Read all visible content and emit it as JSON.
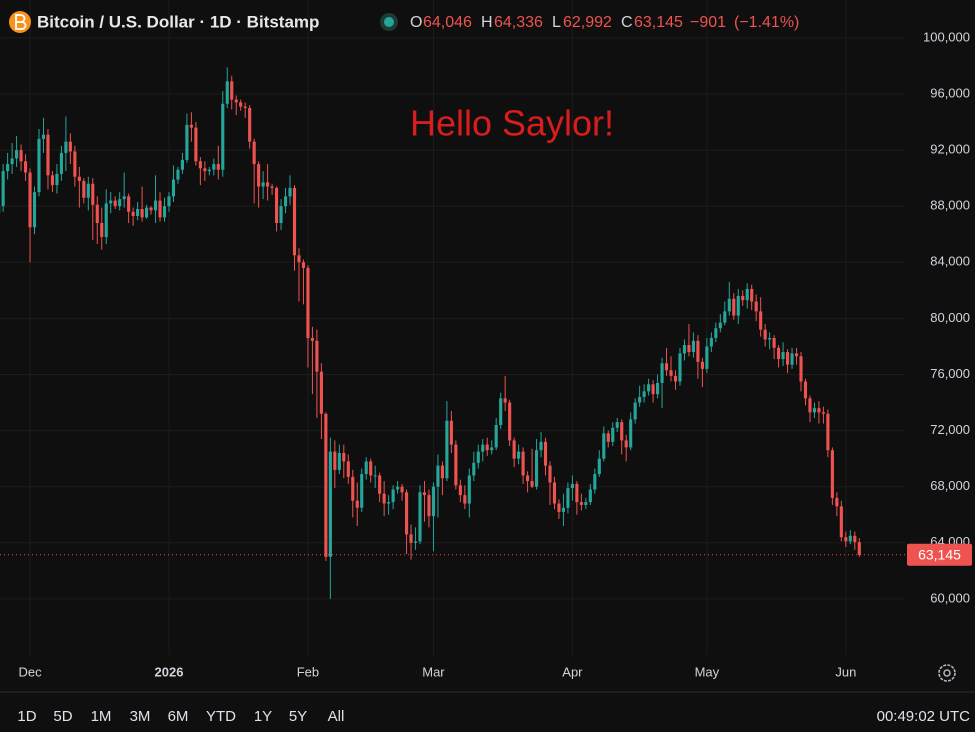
{
  "header": {
    "title": "Bitcoin / U.S. Dollar · 1D · Bitstamp",
    "ohlc_keys": [
      "O",
      "H",
      "L",
      "C"
    ],
    "last_values": [
      {
        "value": 64046,
        "label": "64,046"
      },
      {
        "value": 64336,
        "label": "64,336"
      },
      {
        "value": 62992,
        "label": "62,992"
      },
      {
        "value": 63145,
        "label": "63,145"
      }
    ],
    "change": {
      "value": -901,
      "label": "−901"
    },
    "change_pct": {
      "value": -1.41,
      "label": "(−1.41%)"
    }
  },
  "chart_data": {
    "type": "candlestick",
    "annotation": "Hello Saylor!",
    "up_color": "#26a69a",
    "down_color": "#ef5350",
    "grid": true,
    "ylim": [
      56000,
      102700
    ],
    "yticks": [
      {
        "value": 60000,
        "label": "60,000"
      },
      {
        "value": 64000,
        "label": "64,000"
      },
      {
        "value": 68000,
        "label": "68,000"
      },
      {
        "value": 72000,
        "label": "72,000"
      },
      {
        "value": 76000,
        "label": "76,000"
      },
      {
        "value": 80000,
        "label": "80,000"
      },
      {
        "value": 84000,
        "label": "84,000"
      },
      {
        "value": 88000,
        "label": "88,000"
      },
      {
        "value": 92000,
        "label": "92,000"
      },
      {
        "value": 96000,
        "label": "96,000"
      },
      {
        "value": 100000,
        "label": "100,000"
      }
    ],
    "xlim": [
      0.3,
      202.2
    ],
    "xticks": [
      {
        "value": 7,
        "label": "Dec"
      },
      {
        "value": 38,
        "label": "2026"
      },
      {
        "value": 69,
        "label": "Feb"
      },
      {
        "value": 97,
        "label": "Mar"
      },
      {
        "value": 128,
        "label": "Apr"
      },
      {
        "value": 158,
        "label": "May"
      },
      {
        "value": 189,
        "label": "Jun"
      }
    ],
    "ohlc": [
      [
        87500,
        89200,
        86900,
        88000
      ],
      [
        88000,
        91000,
        87600,
        90500
      ],
      [
        90500,
        91800,
        89900,
        91000
      ],
      [
        91000,
        92500,
        90300,
        91400
      ],
      [
        91400,
        93000,
        90800,
        92000
      ],
      [
        92000,
        92400,
        90500,
        91200
      ],
      [
        91200,
        91700,
        89800,
        90400
      ],
      [
        90400,
        90700,
        84000,
        86500
      ],
      [
        86500,
        89400,
        86000,
        89000
      ],
      [
        89000,
        93500,
        88700,
        92800
      ],
      [
        92800,
        94300,
        91800,
        93100
      ],
      [
        93100,
        93500,
        89200,
        90200
      ],
      [
        90200,
        90500,
        89000,
        89500
      ],
      [
        89500,
        91000,
        88900,
        90300
      ],
      [
        90300,
        92300,
        89800,
        91800
      ],
      [
        91800,
        94400,
        90500,
        92600
      ],
      [
        92600,
        93200,
        91000,
        91900
      ],
      [
        91900,
        92300,
        89400,
        90100
      ],
      [
        90100,
        90800,
        87900,
        89800
      ],
      [
        89800,
        90000,
        88200,
        88600
      ],
      [
        88600,
        90100,
        87700,
        89600
      ],
      [
        89600,
        90000,
        85600,
        88100
      ],
      [
        88100,
        88700,
        85300,
        86800
      ],
      [
        86800,
        87900,
        84900,
        85800
      ],
      [
        85800,
        89200,
        85300,
        88200
      ],
      [
        88200,
        89000,
        87500,
        88400
      ],
      [
        88400,
        88700,
        87800,
        88000
      ],
      [
        88000,
        89000,
        87700,
        88500
      ],
      [
        88500,
        90400,
        87900,
        88700
      ],
      [
        88700,
        88900,
        86800,
        87600
      ],
      [
        87600,
        87900,
        86600,
        87300
      ],
      [
        87300,
        88300,
        87000,
        87800
      ],
      [
        87800,
        89400,
        86900,
        87200
      ],
      [
        87200,
        88100,
        87100,
        87900
      ],
      [
        87900,
        88000,
        87400,
        87700
      ],
      [
        87700,
        90200,
        86800,
        88400
      ],
      [
        88400,
        89000,
        86900,
        87200
      ],
      [
        87200,
        88600,
        86900,
        88000
      ],
      [
        88000,
        89000,
        87600,
        88700
      ],
      [
        88700,
        90900,
        88300,
        89900
      ],
      [
        89900,
        90800,
        89600,
        90600
      ],
      [
        90600,
        91800,
        90300,
        91300
      ],
      [
        91300,
        94600,
        91100,
        93800
      ],
      [
        93800,
        94700,
        92600,
        93600
      ],
      [
        93600,
        94000,
        90900,
        91200
      ],
      [
        91200,
        91500,
        89500,
        90700
      ],
      [
        90700,
        91200,
        89800,
        90500
      ],
      [
        90500,
        90800,
        90200,
        90600
      ],
      [
        90600,
        91400,
        90200,
        91000
      ],
      [
        91000,
        92300,
        89900,
        90600
      ],
      [
        90600,
        96200,
        90100,
        95300
      ],
      [
        95300,
        97900,
        95000,
        96900
      ],
      [
        96900,
        97300,
        94900,
        95600
      ],
      [
        95600,
        95900,
        94500,
        95400
      ],
      [
        95400,
        95600,
        94800,
        95100
      ],
      [
        95100,
        95400,
        94300,
        95000
      ],
      [
        95000,
        95200,
        92100,
        92600
      ],
      [
        92600,
        92800,
        88200,
        91000
      ],
      [
        91000,
        91200,
        87900,
        89400
      ],
      [
        89400,
        90500,
        88500,
        89700
      ],
      [
        89700,
        91000,
        88400,
        89400
      ],
      [
        89400,
        89600,
        88800,
        89300
      ],
      [
        89300,
        89400,
        86200,
        86800
      ],
      [
        86800,
        88500,
        86300,
        88000
      ],
      [
        88000,
        89300,
        87500,
        88700
      ],
      [
        88700,
        90200,
        88100,
        89300
      ],
      [
        89300,
        89500,
        83400,
        84500
      ],
      [
        84500,
        85000,
        81200,
        84000
      ],
      [
        84000,
        84200,
        81000,
        83600
      ],
      [
        83600,
        83800,
        76500,
        78600
      ],
      [
        78600,
        79400,
        74600,
        78400
      ],
      [
        78400,
        79200,
        72900,
        76200
      ],
      [
        76200,
        76800,
        71400,
        73200
      ],
      [
        73200,
        73300,
        62700,
        63000
      ],
      [
        63000,
        71500,
        60000,
        70500
      ],
      [
        70500,
        71300,
        67900,
        69200
      ],
      [
        69200,
        71000,
        68900,
        70400
      ],
      [
        70400,
        71000,
        68600,
        69800
      ],
      [
        69800,
        70300,
        68200,
        68700
      ],
      [
        68700,
        69200,
        65800,
        67000
      ],
      [
        67000,
        68300,
        65200,
        66500
      ],
      [
        66500,
        69300,
        66200,
        68900
      ],
      [
        68900,
        70100,
        68500,
        69800
      ],
      [
        69800,
        70000,
        68300,
        68800
      ],
      [
        68800,
        69500,
        67900,
        68800
      ],
      [
        68800,
        69000,
        66900,
        67500
      ],
      [
        67500,
        68400,
        65900,
        66800
      ],
      [
        66800,
        67400,
        66000,
        66900
      ],
      [
        66900,
        68100,
        66400,
        67800
      ],
      [
        67800,
        68400,
        67500,
        68000
      ],
      [
        68000,
        68200,
        67000,
        67600
      ],
      [
        67600,
        67800,
        63200,
        64600
      ],
      [
        64600,
        65300,
        62800,
        64000
      ],
      [
        64000,
        65100,
        63500,
        64100
      ],
      [
        64100,
        68100,
        63900,
        67600
      ],
      [
        67600,
        68400,
        65500,
        67400
      ],
      [
        67400,
        67800,
        65100,
        65900
      ],
      [
        65900,
        68300,
        63400,
        68000
      ],
      [
        68000,
        70300,
        65800,
        69500
      ],
      [
        69500,
        69800,
        67400,
        68600
      ],
      [
        68600,
        74100,
        68400,
        72700
      ],
      [
        72700,
        73400,
        70400,
        71000
      ],
      [
        71000,
        71300,
        67800,
        68100
      ],
      [
        68100,
        68500,
        66900,
        67400
      ],
      [
        67400,
        68100,
        66400,
        66800
      ],
      [
        66800,
        69300,
        65800,
        68800
      ],
      [
        68800,
        70500,
        68400,
        69700
      ],
      [
        69700,
        71000,
        69300,
        70500
      ],
      [
        70500,
        71400,
        69800,
        71000
      ],
      [
        71000,
        71500,
        70200,
        70600
      ],
      [
        70600,
        71300,
        70300,
        70800
      ],
      [
        70800,
        72900,
        70600,
        72400
      ],
      [
        72400,
        74700,
        72100,
        74300
      ],
      [
        74300,
        75900,
        73400,
        74000
      ],
      [
        74000,
        74200,
        70900,
        71300
      ],
      [
        71300,
        71500,
        69400,
        70000
      ],
      [
        70000,
        71000,
        69600,
        70500
      ],
      [
        70500,
        70800,
        68200,
        68800
      ],
      [
        68800,
        69100,
        67600,
        68400
      ],
      [
        68400,
        70700,
        67900,
        68000
      ],
      [
        68000,
        71400,
        67800,
        70600
      ],
      [
        70600,
        71900,
        70100,
        71200
      ],
      [
        71200,
        71500,
        68800,
        69500
      ],
      [
        69500,
        69800,
        66700,
        68300
      ],
      [
        68300,
        68700,
        66400,
        66800
      ],
      [
        66800,
        67100,
        65700,
        66200
      ],
      [
        66200,
        67500,
        65200,
        66500
      ],
      [
        66500,
        68300,
        66100,
        67900
      ],
      [
        67900,
        68800,
        67000,
        68200
      ],
      [
        68200,
        68400,
        66000,
        66900
      ],
      [
        66900,
        67500,
        66300,
        66700
      ],
      [
        66700,
        67200,
        66400,
        66900
      ],
      [
        66900,
        68200,
        66700,
        67800
      ],
      [
        67800,
        69300,
        67500,
        68900
      ],
      [
        68900,
        70600,
        68700,
        70000
      ],
      [
        70000,
        72300,
        69800,
        71800
      ],
      [
        71800,
        72000,
        70800,
        71200
      ],
      [
        71200,
        72600,
        70900,
        72200
      ],
      [
        72200,
        72900,
        71900,
        72600
      ],
      [
        72600,
        72800,
        70300,
        71300
      ],
      [
        71300,
        71700,
        69800,
        70800
      ],
      [
        70800,
        73300,
        70600,
        72800
      ],
      [
        72800,
        74300,
        72500,
        74000
      ],
      [
        74000,
        75200,
        73700,
        74400
      ],
      [
        74400,
        75300,
        74000,
        74800
      ],
      [
        74800,
        75700,
        74500,
        75300
      ],
      [
        75300,
        75600,
        74000,
        74600
      ],
      [
        74600,
        76000,
        74300,
        75400
      ],
      [
        75400,
        77200,
        73600,
        76800
      ],
      [
        76800,
        77900,
        75900,
        76300
      ],
      [
        76300,
        77300,
        75500,
        75900
      ],
      [
        75900,
        76300,
        74900,
        75500
      ],
      [
        75500,
        77900,
        75200,
        77500
      ],
      [
        77500,
        78500,
        77000,
        78100
      ],
      [
        78100,
        79600,
        77300,
        77600
      ],
      [
        77600,
        79000,
        77200,
        78400
      ],
      [
        78400,
        78800,
        75700,
        76900
      ],
      [
        76900,
        77200,
        75100,
        76400
      ],
      [
        76400,
        78600,
        76100,
        78000
      ],
      [
        78000,
        79000,
        77600,
        78600
      ],
      [
        78600,
        79700,
        78300,
        79300
      ],
      [
        79300,
        80300,
        79000,
        79700
      ],
      [
        79700,
        81200,
        79500,
        80500
      ],
      [
        80500,
        82600,
        80200,
        81400
      ],
      [
        81400,
        81800,
        79900,
        80200
      ],
      [
        80200,
        82100,
        79600,
        81600
      ],
      [
        81600,
        82000,
        80900,
        81300
      ],
      [
        81300,
        82500,
        80700,
        82100
      ],
      [
        82100,
        82400,
        80600,
        81200
      ],
      [
        81200,
        81700,
        79800,
        80500
      ],
      [
        80500,
        81500,
        78700,
        79200
      ],
      [
        79200,
        79600,
        78000,
        78500
      ],
      [
        78500,
        79000,
        77800,
        78600
      ],
      [
        78600,
        78800,
        77100,
        77900
      ],
      [
        77900,
        78100,
        76500,
        77100
      ],
      [
        77100,
        78300,
        76600,
        77600
      ],
      [
        77600,
        77800,
        76100,
        76700
      ],
      [
        76700,
        77900,
        76400,
        77500
      ],
      [
        77500,
        77900,
        76700,
        77300
      ],
      [
        77300,
        77600,
        74800,
        75500
      ],
      [
        75500,
        75700,
        73800,
        74300
      ],
      [
        74300,
        74500,
        72600,
        73300
      ],
      [
        73300,
        74000,
        72900,
        73600
      ],
      [
        73600,
        74100,
        72500,
        73300
      ],
      [
        73300,
        73700,
        72500,
        73200
      ],
      [
        73200,
        73500,
        70100,
        70600
      ],
      [
        70600,
        70800,
        66700,
        67200
      ],
      [
        67200,
        67600,
        65900,
        66600
      ],
      [
        66600,
        67000,
        64100,
        64400
      ],
      [
        64400,
        64800,
        63700,
        64100
      ],
      [
        64100,
        64900,
        63900,
        64500
      ],
      [
        64500,
        64800,
        63500,
        64046
      ],
      [
        64046,
        64336,
        62992,
        63145
      ]
    ]
  },
  "toolbar": {
    "ranges": [
      "1D",
      "5D",
      "1M",
      "3M",
      "6M",
      "YTD",
      "1Y",
      "5Y",
      "All"
    ],
    "clock": "00:49:02 UTC"
  }
}
